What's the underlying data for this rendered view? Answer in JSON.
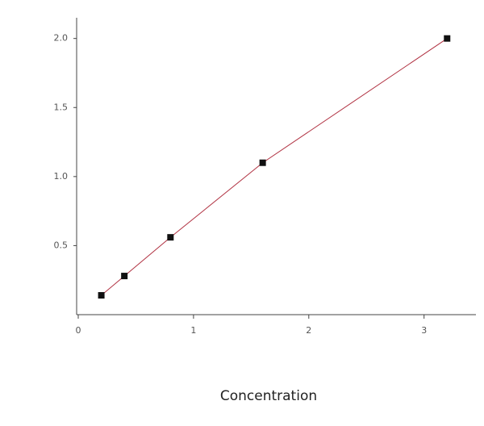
{
  "chart_data": {
    "type": "line",
    "x_label": "Concentration",
    "x": [
      0.2,
      0.4,
      0.8,
      1.6,
      3.2
    ],
    "series": [
      {
        "color": "#b03040",
        "marker_color": "#111111",
        "values": [
          0.14,
          0.28,
          0.56,
          1.1,
          2.0
        ]
      }
    ],
    "xlim": [
      0,
      3.45
    ],
    "xticks": [
      0,
      1,
      2,
      3
    ],
    "ylim": [
      0,
      2.15
    ],
    "yticks": [
      0.5,
      {
        "value": 1,
        "label": "1.0"
      },
      1.5,
      {
        "value": 2,
        "label": "2.0"
      }
    ],
    "grid": false
  }
}
